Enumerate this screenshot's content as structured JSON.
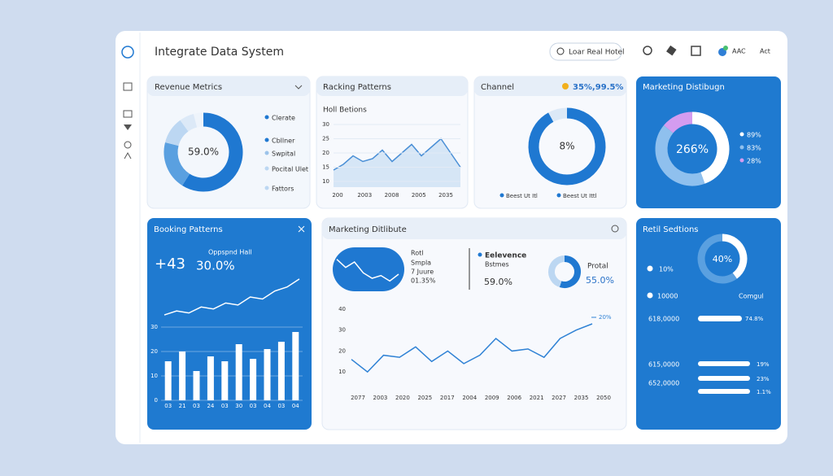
{
  "header": {
    "title": "Integrate Data System",
    "search": "Loar Real Hotel",
    "user": "AAC",
    "action": "Act"
  },
  "revenue": {
    "title": "Revenue Metrics",
    "center": "59.0%",
    "chart": {
      "type": "pie",
      "categories": [
        "Clerate",
        "Cbllner",
        "Swpital",
        "Pocital Ulet",
        "Fattors"
      ],
      "values": [
        59,
        20,
        11,
        6,
        4
      ],
      "colors": [
        "#1f78d1",
        "#5aa0e0",
        "#bcd7f2",
        "#dce9f7",
        "#eef4fb"
      ]
    }
  },
  "racking": {
    "title": "Racking Patterns",
    "subtitle": "Holl Betions",
    "chart": {
      "type": "area",
      "values": [
        14,
        16,
        19,
        17,
        18,
        21,
        17,
        20,
        23,
        19,
        22,
        25,
        20,
        15
      ],
      "ylim": [
        8,
        32
      ],
      "yticks": [
        10,
        15,
        20,
        25,
        30
      ],
      "x_labels": [
        "200",
        "2003",
        "2008",
        "2005",
        "2035"
      ],
      "color": "#4a8fd6"
    }
  },
  "channel": {
    "title": "Channel",
    "badge": "35%,99.5%",
    "center": "8%",
    "chart": {
      "type": "pie",
      "categories": [
        "Beest Ut Itl",
        "Beest Ut Ittl"
      ],
      "values": [
        92,
        8
      ],
      "colors": [
        "#1f78d1",
        "#dce9f7"
      ]
    }
  },
  "marketing": {
    "title": "Marketing Distibugn",
    "center": "266%",
    "chart": {
      "type": "pie",
      "values": [
        89,
        83,
        28
      ],
      "value_labels": [
        "89%",
        "83%",
        "28%"
      ],
      "colors": [
        "#ffffff",
        "#8fc0ee",
        "#d49cf0"
      ]
    }
  },
  "booking": {
    "title": "Booking Patterns",
    "kpi": "+43",
    "kpi_label": "Oppspnd Hall",
    "kpi_value": "30.0%",
    "trend": {
      "type": "line",
      "values": [
        10,
        12,
        11,
        14,
        13,
        16,
        15,
        19,
        18,
        22,
        24,
        28
      ],
      "ylim": [
        8,
        30
      ]
    },
    "bars": {
      "type": "bar",
      "categories": [
        "03",
        "21",
        "03",
        "24",
        "03",
        "30",
        "03",
        "04",
        "03",
        "04"
      ],
      "values": [
        16,
        20,
        12,
        18,
        16,
        23,
        17,
        21,
        24,
        28
      ],
      "ylim": [
        0,
        30
      ],
      "yticks": [
        0,
        10,
        20,
        30
      ]
    }
  },
  "marketing2": {
    "title": "Marketing Ditlibute",
    "card": {
      "lines": [
        "Rotl",
        "Smpla",
        "7 Juure",
        "01.35%"
      ],
      "chart": {
        "type": "line",
        "values": [
          20,
          14,
          18,
          10,
          6,
          8,
          4,
          9
        ],
        "ylim": [
          0,
          24
        ]
      }
    },
    "relevance": {
      "title": "Eelevence",
      "label": "Bstmes",
      "value": "59.0%"
    },
    "portal": {
      "label": "Protal",
      "value": "55.0%",
      "chart": {
        "type": "pie",
        "values": [
          55,
          45
        ],
        "colors": [
          "#1f78d1",
          "#bcd7f2"
        ]
      }
    },
    "chart": {
      "type": "line",
      "values": [
        16,
        10,
        18,
        17,
        22,
        15,
        20,
        14,
        18,
        26,
        20,
        21,
        17,
        26,
        30,
        33
      ],
      "ylim": [
        5,
        40
      ],
      "yticks": [
        10,
        20,
        30,
        40
      ],
      "x_labels": [
        "2077",
        "2003",
        "2020",
        "2025",
        "2017",
        "2004",
        "2009",
        "2006",
        "2021",
        "2027",
        "2035",
        "2050"
      ],
      "annotation": "20%",
      "color": "#2f82d5"
    }
  },
  "retail": {
    "title": "Retil Sedtions",
    "center": "40%",
    "chart": {
      "type": "pie",
      "values": [
        40,
        60
      ],
      "colors": [
        "#ffffff",
        "#5aa0e0"
      ]
    },
    "rows": [
      "10%",
      "10000",
      "Comgul",
      "618,0000",
      "74.8%",
      "615,0000",
      "652,0000",
      "19%",
      "23%",
      "1.1%"
    ]
  }
}
